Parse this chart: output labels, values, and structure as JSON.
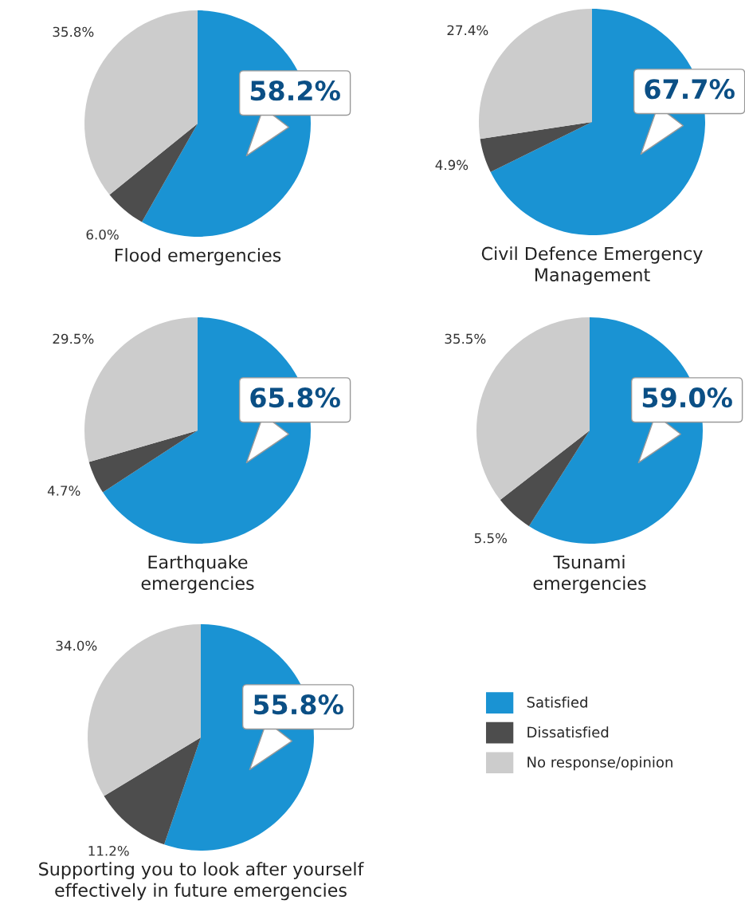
{
  "chart_data": [
    {
      "type": "pie",
      "title": "Flood emergencies",
      "categories": [
        "Satisfied",
        "Dissatisfied",
        "No response/opinion"
      ],
      "values": [
        58.2,
        6.0,
        35.8
      ],
      "value_labels": [
        "58.2%",
        "6.0%",
        "35.8%"
      ],
      "colors": [
        "#1a93d3",
        "#4d4d4d",
        "#cccccc"
      ],
      "legend": "bottom right"
    },
    {
      "type": "pie",
      "title": "Civil Defence Emergency\nManagement",
      "values": [
        67.7,
        4.9,
        27.4
      ],
      "value_labels": [
        "67.7%",
        "4.9%",
        "27.4%"
      ],
      "colors": [
        "#1a93d3",
        "#4d4d4d",
        "#cccccc"
      ]
    },
    {
      "type": "pie",
      "title": "Earthquake\nemergencies",
      "values": [
        65.8,
        4.7,
        29.5
      ],
      "value_labels": [
        "65.8%",
        "4.7%",
        "29.5%"
      ],
      "colors": [
        "#1a93d3",
        "#4d4d4d",
        "#cccccc"
      ]
    },
    {
      "type": "pie",
      "title": "Tsunami\nemergencies",
      "values": [
        59.0,
        5.5,
        35.5
      ],
      "value_labels": [
        "59.0%",
        "5.5%",
        "35.5%"
      ],
      "colors": [
        "#1a93d3",
        "#4d4d4d",
        "#cccccc"
      ]
    },
    {
      "type": "pie",
      "title": "Supporting you to look after yourself\neffectively in future emergencies",
      "values": [
        55.8,
        11.2,
        34.0
      ],
      "value_labels": [
        "55.8%",
        "11.2%",
        "34.0%"
      ],
      "colors": [
        "#1a93d3",
        "#4d4d4d",
        "#cccccc"
      ]
    }
  ]
}
